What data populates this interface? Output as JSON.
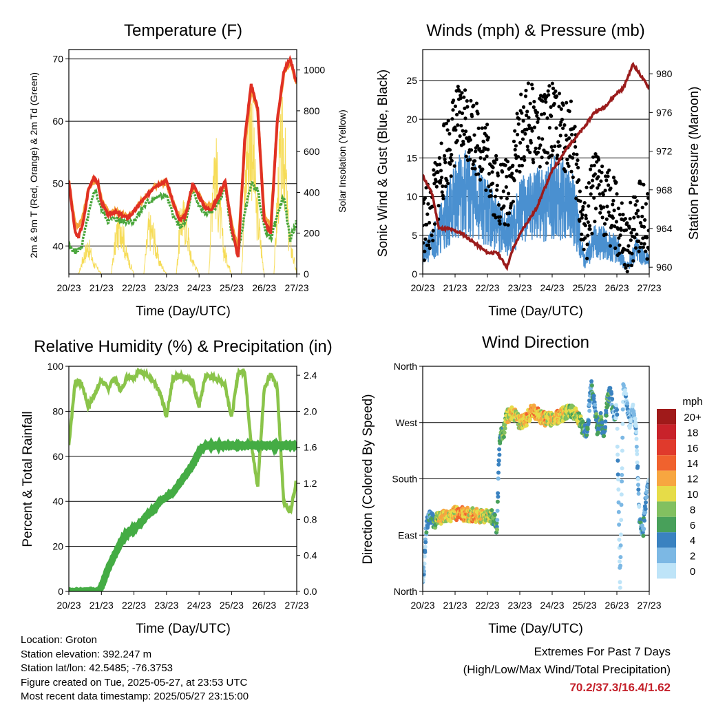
{
  "colors": {
    "temp2m": "#e03024",
    "temp9m": "#f5a23a",
    "dew": "#4aa63c",
    "solar": "#f6dc58",
    "wind": "#4a90d0",
    "gust": "#000000",
    "pressure": "#9b1c1c",
    "rh": "#8ac44a",
    "precip": "#44ac44",
    "extremes": "#c4202a"
  },
  "footer": {
    "location": "Location: Groton",
    "elevation": "Station elevation: 392.247 m",
    "latlon": "Station lat/lon: 42.5485; -76.3753",
    "created": "Figure created on Tue, 2025-05-27, at 23:53 UTC",
    "recent": "Most recent data timestamp: 2025/05/27 23:15:00",
    "extremes_title": "Extremes For Past 7 Days",
    "extremes_subtitle": "(High/Low/Max Wind/Total Precipitation)",
    "extremes_values": "70.2/37.3/16.4/1.62"
  },
  "chart_data": [
    {
      "type": "line",
      "title": "Temperature (F)",
      "xlabel": "Time (Day/UTC)",
      "ylabel": "2m & 9m T (Red, Orange) & 2m Td (Green)",
      "y2label": "Solar Insolation (Yellow)",
      "xticks": [
        "20/23",
        "21/23",
        "22/23",
        "23/23",
        "24/23",
        "25/23",
        "26/23",
        "27/23"
      ],
      "ylim": [
        35.5,
        71.5
      ],
      "yticks": [
        40,
        50,
        60,
        70
      ],
      "y2lim": [
        0,
        1100
      ],
      "y2ticks": [
        0,
        200,
        400,
        600,
        800,
        1000
      ],
      "grid": true,
      "series": [
        {
          "name": "2m T",
          "axis": "left",
          "x": [
            0,
            0.1,
            0.2,
            0.3,
            0.45,
            0.6,
            0.75,
            0.9,
            1,
            1.2,
            1.4,
            1.6,
            1.8,
            2,
            2.2,
            2.4,
            2.6,
            2.8,
            3,
            3.2,
            3.4,
            3.6,
            3.8,
            4,
            4.2,
            4.4,
            4.6,
            4.8,
            5,
            5.2,
            5.4,
            5.6,
            5.8,
            6,
            6.2,
            6.4,
            6.6,
            6.8,
            7
          ],
          "values": [
            50.5,
            46,
            42,
            41.5,
            44,
            49,
            51,
            50,
            47,
            45,
            45.5,
            45,
            44.5,
            45.5,
            47,
            48,
            49.5,
            50,
            50.5,
            47,
            44,
            45,
            50,
            48,
            46,
            46,
            48,
            50.5,
            43,
            38,
            57,
            66,
            62,
            44,
            42,
            60,
            68,
            70,
            66
          ]
        },
        {
          "name": "9m T",
          "axis": "left",
          "x": [
            0,
            0.1,
            0.2,
            0.3,
            0.45,
            0.6,
            0.75,
            0.9,
            1,
            1.2,
            1.4,
            1.6,
            1.8,
            2,
            2.2,
            2.4,
            2.6,
            2.8,
            3,
            3.2,
            3.4,
            3.6,
            3.8,
            4,
            4.2,
            4.4,
            4.6,
            4.8,
            5,
            5.2,
            5.4,
            5.6,
            5.8,
            6,
            6.2,
            6.4,
            6.6,
            6.8,
            7
          ],
          "values": [
            50.5,
            46.5,
            43.5,
            43,
            45,
            49,
            50.5,
            50,
            47.5,
            45.5,
            45.5,
            45.2,
            44.8,
            45.5,
            47,
            48,
            49.5,
            50,
            50,
            47,
            44.5,
            45.5,
            49.5,
            48,
            46.5,
            46.5,
            48,
            50,
            43.5,
            39.5,
            56,
            65,
            61.5,
            45,
            43,
            59.5,
            67.5,
            69.5,
            66
          ]
        },
        {
          "name": "2m Td",
          "axis": "left",
          "x": [
            0,
            0.2,
            0.4,
            0.6,
            0.8,
            1,
            1.2,
            1.4,
            1.6,
            1.8,
            2,
            2.2,
            2.4,
            2.6,
            2.8,
            3,
            3.2,
            3.4,
            3.6,
            3.8,
            4,
            4.2,
            4.4,
            4.6,
            4.8,
            5,
            5.2,
            5.4,
            5.6,
            5.8,
            6,
            6.2,
            6.4,
            6.6,
            6.8,
            7
          ],
          "values": [
            40,
            39,
            40,
            45,
            49,
            46,
            44,
            44.5,
            44,
            44,
            44,
            45.5,
            47,
            47.5,
            48,
            48,
            45,
            43,
            44,
            49,
            46.5,
            45,
            45.5,
            47,
            49.5,
            42,
            39,
            45,
            50,
            49,
            43,
            41,
            45,
            48,
            41,
            44
          ]
        },
        {
          "name": "Solar Insolation",
          "axis": "right",
          "x": [
            0,
            0.3,
            0.45,
            0.6,
            0.75,
            1,
            1.3,
            1.45,
            1.6,
            1.75,
            2,
            2.3,
            2.45,
            2.6,
            2.75,
            3,
            3.3,
            3.45,
            3.6,
            3.75,
            4,
            4.3,
            4.45,
            4.6,
            4.75,
            5,
            5.3,
            5.45,
            5.6,
            5.75,
            6,
            6.3,
            6.45,
            6.6,
            6.75,
            7
          ],
          "values": [
            0,
            0,
            120,
            200,
            80,
            0,
            0,
            260,
            380,
            150,
            0,
            0,
            320,
            280,
            100,
            0,
            0,
            410,
            360,
            120,
            0,
            0,
            880,
            520,
            180,
            0,
            0,
            800,
            1070,
            500,
            0,
            0,
            700,
            950,
            280,
            0
          ]
        }
      ]
    },
    {
      "type": "line",
      "title": "Winds (mph) & Pressure (mb)",
      "xlabel": "Time (Day/UTC)",
      "ylabel": "Sonic Wind & Gust (Blue, Black)",
      "y2label": "Station Pressure (Maroon)",
      "xticks": [
        "20/23",
        "21/23",
        "22/23",
        "23/23",
        "24/23",
        "25/23",
        "26/23",
        "27/23"
      ],
      "ylim": [
        0,
        29
      ],
      "yticks": [
        0,
        5,
        10,
        15,
        20,
        25
      ],
      "y2lim": [
        959.3,
        982.5
      ],
      "y2ticks": [
        960,
        964,
        968,
        972,
        976,
        980
      ],
      "grid": true,
      "series": [
        {
          "name": "Sonic Wind",
          "axis": "left",
          "x": [
            0,
            0.3,
            0.6,
            1,
            1.3,
            1.6,
            2,
            2.3,
            2.6,
            3,
            3.3,
            3.6,
            4,
            4.3,
            4.6,
            5,
            5.3,
            5.6,
            6,
            6.3,
            6.6,
            7
          ],
          "values": [
            3,
            5,
            8,
            12,
            13,
            12,
            10,
            8,
            6,
            10,
            11,
            11,
            13,
            12,
            12,
            2,
            5,
            5,
            4,
            1,
            4,
            2
          ]
        },
        {
          "name": "Gust",
          "axis": "left",
          "x": [
            0,
            0.3,
            0.6,
            1,
            1.3,
            1.6,
            2,
            2.3,
            2.6,
            3,
            3.3,
            3.6,
            4,
            4.3,
            4.6,
            5,
            5.3,
            5.6,
            6,
            6.3,
            6.6,
            7
          ],
          "values": [
            6,
            8,
            14,
            19,
            20,
            18,
            15,
            11,
            10,
            18,
            20,
            18,
            20,
            18,
            18,
            5,
            11,
            10,
            7,
            2,
            8,
            6
          ]
        },
        {
          "name": "Station Pressure",
          "axis": "right",
          "x": [
            0,
            0.3,
            0.5,
            0.8,
            1.2,
            1.6,
            2,
            2.3,
            2.6,
            2.8,
            3.1,
            3.5,
            4,
            4.5,
            5,
            5.3,
            5.6,
            6,
            6.2,
            6.5,
            6.8,
            7
          ],
          "values": [
            969.5,
            967.5,
            964,
            964,
            963.5,
            962.5,
            961.5,
            961.5,
            960,
            962,
            964,
            966,
            970,
            972.5,
            974.5,
            976,
            976.5,
            978,
            978.5,
            981,
            979.5,
            978.5
          ]
        }
      ]
    },
    {
      "type": "line",
      "title": "Relative Humidity (%) & Precipitation (in)",
      "xlabel": "Time (Day/UTC)",
      "ylabel": "Percent & Total Rainfall",
      "xticks": [
        "20/23",
        "21/23",
        "22/23",
        "23/23",
        "24/23",
        "25/23",
        "26/23",
        "27/23"
      ],
      "ylim": [
        0,
        100
      ],
      "yticks": [
        0,
        20,
        40,
        60,
        80,
        100
      ],
      "y2lim": [
        0,
        2.5
      ],
      "y2ticks": [
        "0.0",
        "0.4",
        "0.8",
        "1.2",
        "1.6",
        "2.0",
        "2.4"
      ],
      "grid": true,
      "series": [
        {
          "name": "Relative Humidity",
          "axis": "left",
          "x": [
            0,
            0.2,
            0.4,
            0.6,
            0.8,
            1,
            1.2,
            1.4,
            1.6,
            1.8,
            2,
            2.2,
            2.4,
            2.6,
            2.8,
            3,
            3.2,
            3.4,
            3.6,
            3.8,
            4,
            4.2,
            4.4,
            4.6,
            4.8,
            5,
            5.2,
            5.4,
            5.6,
            5.8,
            6,
            6.2,
            6.4,
            6.6,
            6.8,
            7
          ],
          "values": [
            65,
            94,
            92,
            82,
            88,
            94,
            90,
            95,
            89,
            96,
            95,
            98,
            96,
            93,
            88,
            78,
            95,
            96,
            95,
            93,
            82,
            96,
            95,
            94,
            92,
            77,
            97,
            98,
            66,
            46,
            90,
            97,
            90,
            40,
            35,
            50
          ]
        },
        {
          "name": "Total Precipitation",
          "axis": "right",
          "x": [
            0,
            0.5,
            0.9,
            1,
            1.2,
            1.4,
            1.6,
            1.8,
            2,
            2.2,
            2.4,
            2.6,
            2.8,
            3,
            3.2,
            3.4,
            3.6,
            3.8,
            4,
            4.2,
            4.6,
            5,
            6,
            7
          ],
          "values": [
            0,
            0,
            0,
            0.05,
            0.25,
            0.4,
            0.55,
            0.65,
            0.7,
            0.75,
            0.85,
            0.9,
            1.0,
            1.05,
            1.1,
            1.2,
            1.3,
            1.4,
            1.55,
            1.62,
            1.62,
            1.62,
            1.62,
            1.62
          ]
        }
      ]
    },
    {
      "type": "scatter",
      "title": "Wind Direction",
      "xlabel": "Time (Day/UTC)",
      "ylabel": "Direction (Colored By Speed)",
      "xticks": [
        "20/23",
        "21/23",
        "22/23",
        "23/23",
        "24/23",
        "25/23",
        "26/23",
        "27/23"
      ],
      "ylim": [
        0,
        360
      ],
      "yticks": [
        {
          "value": 0,
          "label": "North"
        },
        {
          "value": 90,
          "label": "East"
        },
        {
          "value": 180,
          "label": "South"
        },
        {
          "value": 270,
          "label": "West"
        },
        {
          "value": 360,
          "label": "North"
        }
      ],
      "grid": true,
      "legend": {
        "title": "mph",
        "position": "right",
        "levels": [
          "20+",
          "18",
          "16",
          "14",
          "12",
          "10",
          "8",
          "6",
          "4",
          "2",
          "0"
        ],
        "colors": [
          "#a01a1a",
          "#c8222a",
          "#e03a2c",
          "#f0622e",
          "#f7a640",
          "#e6dc48",
          "#82c060",
          "#48a05a",
          "#3a82c0",
          "#7cb8e4",
          "#bee4f8"
        ]
      },
      "series": [
        {
          "name": "Direction",
          "x": [
            0,
            0.05,
            0.1,
            0.15,
            0.2,
            0.3,
            0.4,
            0.5,
            0.6,
            0.8,
            1,
            1.2,
            1.4,
            1.6,
            1.8,
            2,
            2.2,
            2.3,
            2.35,
            2.4,
            2.5,
            2.6,
            2.8,
            3,
            3.2,
            3.4,
            3.6,
            3.8,
            4,
            4.2,
            4.4,
            4.6,
            4.8,
            5,
            5.1,
            5.2,
            5.3,
            5.4,
            5.5,
            5.6,
            5.7,
            5.8,
            5.9,
            6,
            6.1,
            6.2,
            6.3,
            6.4,
            6.5,
            6.6,
            6.7,
            6.8,
            6.9,
            7
          ],
          "values": [
            20,
            40,
            100,
            110,
            120,
            115,
            112,
            120,
            118,
            122,
            125,
            124,
            123,
            122,
            120,
            121,
            118,
            100,
            210,
            250,
            255,
            280,
            285,
            270,
            275,
            290,
            280,
            275,
            275,
            280,
            285,
            290,
            280,
            255,
            262,
            330,
            300,
            260,
            275,
            250,
            300,
            320,
            280,
            290,
            5,
            330,
            300,
            270,
            290,
            255,
            115,
            90,
            150,
            175
          ],
          "speeds": [
            2,
            3,
            4,
            5,
            5,
            6,
            8,
            10,
            11,
            11,
            12,
            13,
            12,
            12,
            11,
            10,
            8,
            6,
            5,
            6,
            8,
            10,
            12,
            11,
            12,
            13,
            12,
            12,
            11,
            12,
            10,
            9,
            10,
            6,
            5,
            4,
            6,
            7,
            6,
            5,
            7,
            6,
            4,
            3,
            2,
            1,
            3,
            2,
            3,
            2,
            4,
            5,
            4,
            3
          ]
        }
      ]
    }
  ]
}
